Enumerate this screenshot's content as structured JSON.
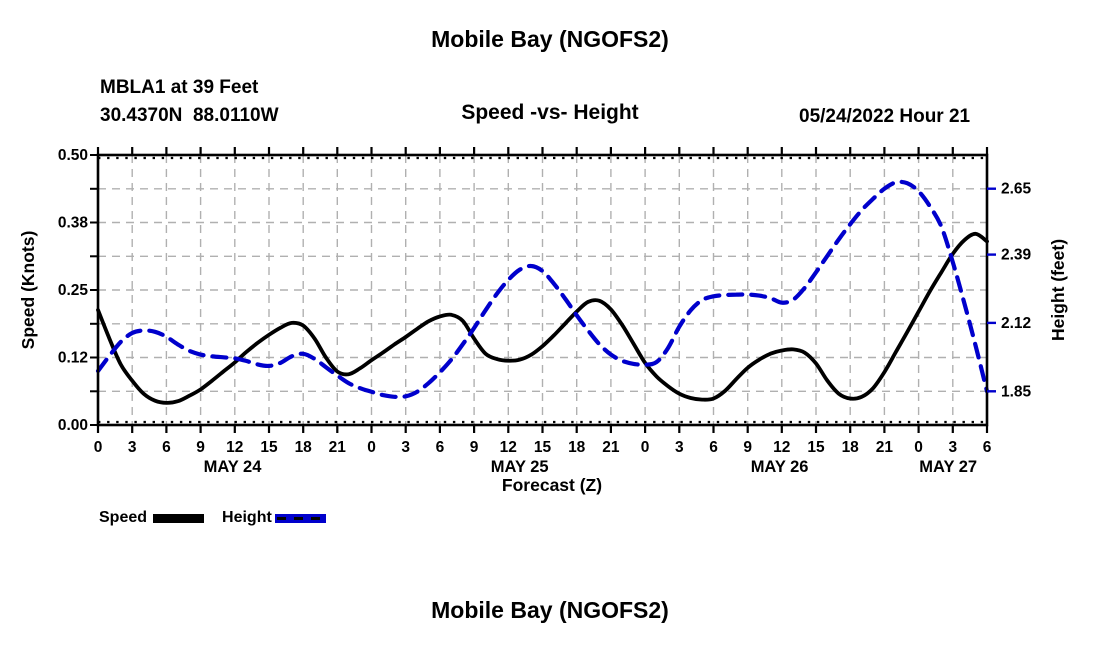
{
  "header": {
    "title": "Mobile Bay (NGOFS2)",
    "station_line1": "MBLA1 at 39 Feet",
    "station_line2": "30.4370N  88.0110W",
    "subtitle": "Speed -vs- Height",
    "datetime": "05/24/2022 Hour 21"
  },
  "footer": {
    "title": "Mobile Bay (NGOFS2)"
  },
  "legend": {
    "items": [
      {
        "label": "Speed",
        "color": "#000000",
        "dashed": false
      },
      {
        "label": "Height",
        "color": "#0000cc",
        "dashed": true
      }
    ]
  },
  "colors": {
    "speed": "#000000",
    "height": "#0000cc",
    "grid": "#b0b0b0",
    "axis": "#000000",
    "background": "#ffffff"
  },
  "chart_data": {
    "type": "line",
    "title": "Speed -vs- Height",
    "xlabel": "Forecast (Z)",
    "ylabel_left": "Speed (Knots)",
    "ylabel_right": "Height (feet)",
    "xlim": [
      0,
      78
    ],
    "ylim_left": [
      0,
      0.5
    ],
    "ylim_right": [
      1.7167,
      2.7833
    ],
    "grid": {
      "x_step_hours": 3,
      "y_step_left": 0.0625,
      "style": "dashed"
    },
    "x_ticks": [
      [
        0,
        "0"
      ],
      [
        3,
        "3"
      ],
      [
        6,
        "6"
      ],
      [
        9,
        "9"
      ],
      [
        12,
        "12"
      ],
      [
        15,
        "15"
      ],
      [
        18,
        "18"
      ],
      [
        21,
        "21"
      ],
      [
        24,
        "0"
      ],
      [
        27,
        "3"
      ],
      [
        30,
        "6"
      ],
      [
        33,
        "9"
      ],
      [
        36,
        "12"
      ],
      [
        39,
        "15"
      ],
      [
        42,
        "18"
      ],
      [
        45,
        "21"
      ],
      [
        48,
        "0"
      ],
      [
        51,
        "3"
      ],
      [
        54,
        "6"
      ],
      [
        57,
        "9"
      ],
      [
        60,
        "12"
      ],
      [
        63,
        "15"
      ],
      [
        66,
        "18"
      ],
      [
        69,
        "21"
      ],
      [
        72,
        "0"
      ],
      [
        75,
        "3"
      ],
      [
        78,
        "6"
      ]
    ],
    "date_labels": [
      {
        "label": "MAY 24",
        "hour": 11.8
      },
      {
        "label": "MAY 25",
        "hour": 37.0
      },
      {
        "label": "MAY 26",
        "hour": 59.8
      },
      {
        "label": "MAY 27",
        "hour": 74.6
      }
    ],
    "left_ticks": [
      {
        "v": 0.0,
        "label": "0.00"
      },
      {
        "v": 0.125,
        "label": "0.12"
      },
      {
        "v": 0.25,
        "label": "0.25"
      },
      {
        "v": 0.375,
        "label": "0.38"
      },
      {
        "v": 0.5,
        "label": "0.50"
      }
    ],
    "right_ticks": [
      {
        "v": 1.85,
        "label": "1.85"
      },
      {
        "v": 2.12,
        "label": "2.12"
      },
      {
        "v": 2.39,
        "label": "2.39"
      },
      {
        "v": 2.65,
        "label": "2.65"
      }
    ],
    "series": [
      {
        "name": "Speed",
        "axis": "left",
        "unit": "knots",
        "style": "solid",
        "color": "#000000",
        "points": [
          [
            0,
            0.213
          ],
          [
            1,
            0.16
          ],
          [
            2,
            0.112
          ],
          [
            3,
            0.082
          ],
          [
            4,
            0.058
          ],
          [
            5,
            0.045
          ],
          [
            6,
            0.041
          ],
          [
            7,
            0.044
          ],
          [
            8,
            0.054
          ],
          [
            9,
            0.066
          ],
          [
            10,
            0.082
          ],
          [
            11,
            0.099
          ],
          [
            12,
            0.116
          ],
          [
            13,
            0.135
          ],
          [
            14,
            0.152
          ],
          [
            15,
            0.167
          ],
          [
            16,
            0.18
          ],
          [
            17,
            0.189
          ],
          [
            18,
            0.184
          ],
          [
            19,
            0.16
          ],
          [
            20,
            0.125
          ],
          [
            21,
            0.099
          ],
          [
            22,
            0.094
          ],
          [
            23,
            0.105
          ],
          [
            24,
            0.12
          ],
          [
            25,
            0.134
          ],
          [
            26,
            0.149
          ],
          [
            27,
            0.163
          ],
          [
            28,
            0.178
          ],
          [
            29,
            0.192
          ],
          [
            30,
            0.201
          ],
          [
            31,
            0.204
          ],
          [
            32,
            0.193
          ],
          [
            33,
            0.16
          ],
          [
            34,
            0.132
          ],
          [
            35,
            0.122
          ],
          [
            36,
            0.119
          ],
          [
            37,
            0.121
          ],
          [
            38,
            0.13
          ],
          [
            39,
            0.146
          ],
          [
            40,
            0.166
          ],
          [
            41,
            0.188
          ],
          [
            42,
            0.21
          ],
          [
            43,
            0.228
          ],
          [
            44,
            0.23
          ],
          [
            45,
            0.214
          ],
          [
            46,
            0.185
          ],
          [
            47,
            0.15
          ],
          [
            48,
            0.115
          ],
          [
            49,
            0.09
          ],
          [
            50,
            0.072
          ],
          [
            51,
            0.058
          ],
          [
            52,
            0.05
          ],
          [
            53,
            0.047
          ],
          [
            54,
            0.049
          ],
          [
            55,
            0.063
          ],
          [
            56,
            0.085
          ],
          [
            57,
            0.106
          ],
          [
            58,
            0.121
          ],
          [
            59,
            0.132
          ],
          [
            60,
            0.138
          ],
          [
            61,
            0.14
          ],
          [
            62,
            0.134
          ],
          [
            63,
            0.114
          ],
          [
            64,
            0.082
          ],
          [
            65,
            0.058
          ],
          [
            66,
            0.049
          ],
          [
            67,
            0.052
          ],
          [
            68,
            0.068
          ],
          [
            69,
            0.098
          ],
          [
            70,
            0.135
          ],
          [
            71,
            0.172
          ],
          [
            72,
            0.21
          ],
          [
            73,
            0.248
          ],
          [
            74,
            0.283
          ],
          [
            75,
            0.317
          ],
          [
            76,
            0.342
          ],
          [
            77,
            0.354
          ],
          [
            78,
            0.34
          ]
        ]
      },
      {
        "name": "Height",
        "axis": "right",
        "unit": "feet",
        "style": "dashed",
        "color": "#0000cc",
        "points": [
          [
            0,
            1.93
          ],
          [
            1,
            1.99
          ],
          [
            2,
            2.045
          ],
          [
            3,
            2.08
          ],
          [
            4,
            2.09
          ],
          [
            5,
            2.085
          ],
          [
            6,
            2.065
          ],
          [
            7,
            2.035
          ],
          [
            8,
            2.01
          ],
          [
            9,
            1.995
          ],
          [
            10,
            1.988
          ],
          [
            11,
            1.984
          ],
          [
            12,
            1.98
          ],
          [
            13,
            1.97
          ],
          [
            14,
            1.956
          ],
          [
            15,
            1.95
          ],
          [
            16,
            1.962
          ],
          [
            17,
            1.988
          ],
          [
            18,
            1.998
          ],
          [
            19,
            1.978
          ],
          [
            20,
            1.945
          ],
          [
            21,
            1.912
          ],
          [
            22,
            1.882
          ],
          [
            23,
            1.862
          ],
          [
            24,
            1.848
          ],
          [
            25,
            1.835
          ],
          [
            26,
            1.828
          ],
          [
            27,
            1.83
          ],
          [
            28,
            1.848
          ],
          [
            29,
            1.882
          ],
          [
            30,
            1.925
          ],
          [
            31,
            1.975
          ],
          [
            32,
            2.035
          ],
          [
            33,
            2.1
          ],
          [
            34,
            2.17
          ],
          [
            35,
            2.235
          ],
          [
            36,
            2.29
          ],
          [
            37,
            2.33
          ],
          [
            38,
            2.345
          ],
          [
            39,
            2.325
          ],
          [
            40,
            2.275
          ],
          [
            41,
            2.215
          ],
          [
            42,
            2.15
          ],
          [
            43,
            2.09
          ],
          [
            44,
            2.035
          ],
          [
            45,
            1.995
          ],
          [
            46,
            1.97
          ],
          [
            47,
            1.958
          ],
          [
            48,
            1.955
          ],
          [
            49,
            1.965
          ],
          [
            50,
            2.02
          ],
          [
            51,
            2.105
          ],
          [
            52,
            2.17
          ],
          [
            53,
            2.21
          ],
          [
            54,
            2.225
          ],
          [
            55,
            2.23
          ],
          [
            56,
            2.232
          ],
          [
            57,
            2.232
          ],
          [
            58,
            2.228
          ],
          [
            59,
            2.218
          ],
          [
            60,
            2.2
          ],
          [
            61,
            2.212
          ],
          [
            62,
            2.258
          ],
          [
            63,
            2.32
          ],
          [
            64,
            2.385
          ],
          [
            65,
            2.45
          ],
          [
            66,
            2.51
          ],
          [
            67,
            2.565
          ],
          [
            68,
            2.61
          ],
          [
            69,
            2.65
          ],
          [
            70,
            2.675
          ],
          [
            71,
            2.672
          ],
          [
            72,
            2.64
          ],
          [
            73,
            2.58
          ],
          [
            74,
            2.5
          ],
          [
            75,
            2.36
          ],
          [
            76,
            2.2
          ],
          [
            77,
            2.03
          ],
          [
            78,
            1.85
          ]
        ]
      }
    ]
  }
}
